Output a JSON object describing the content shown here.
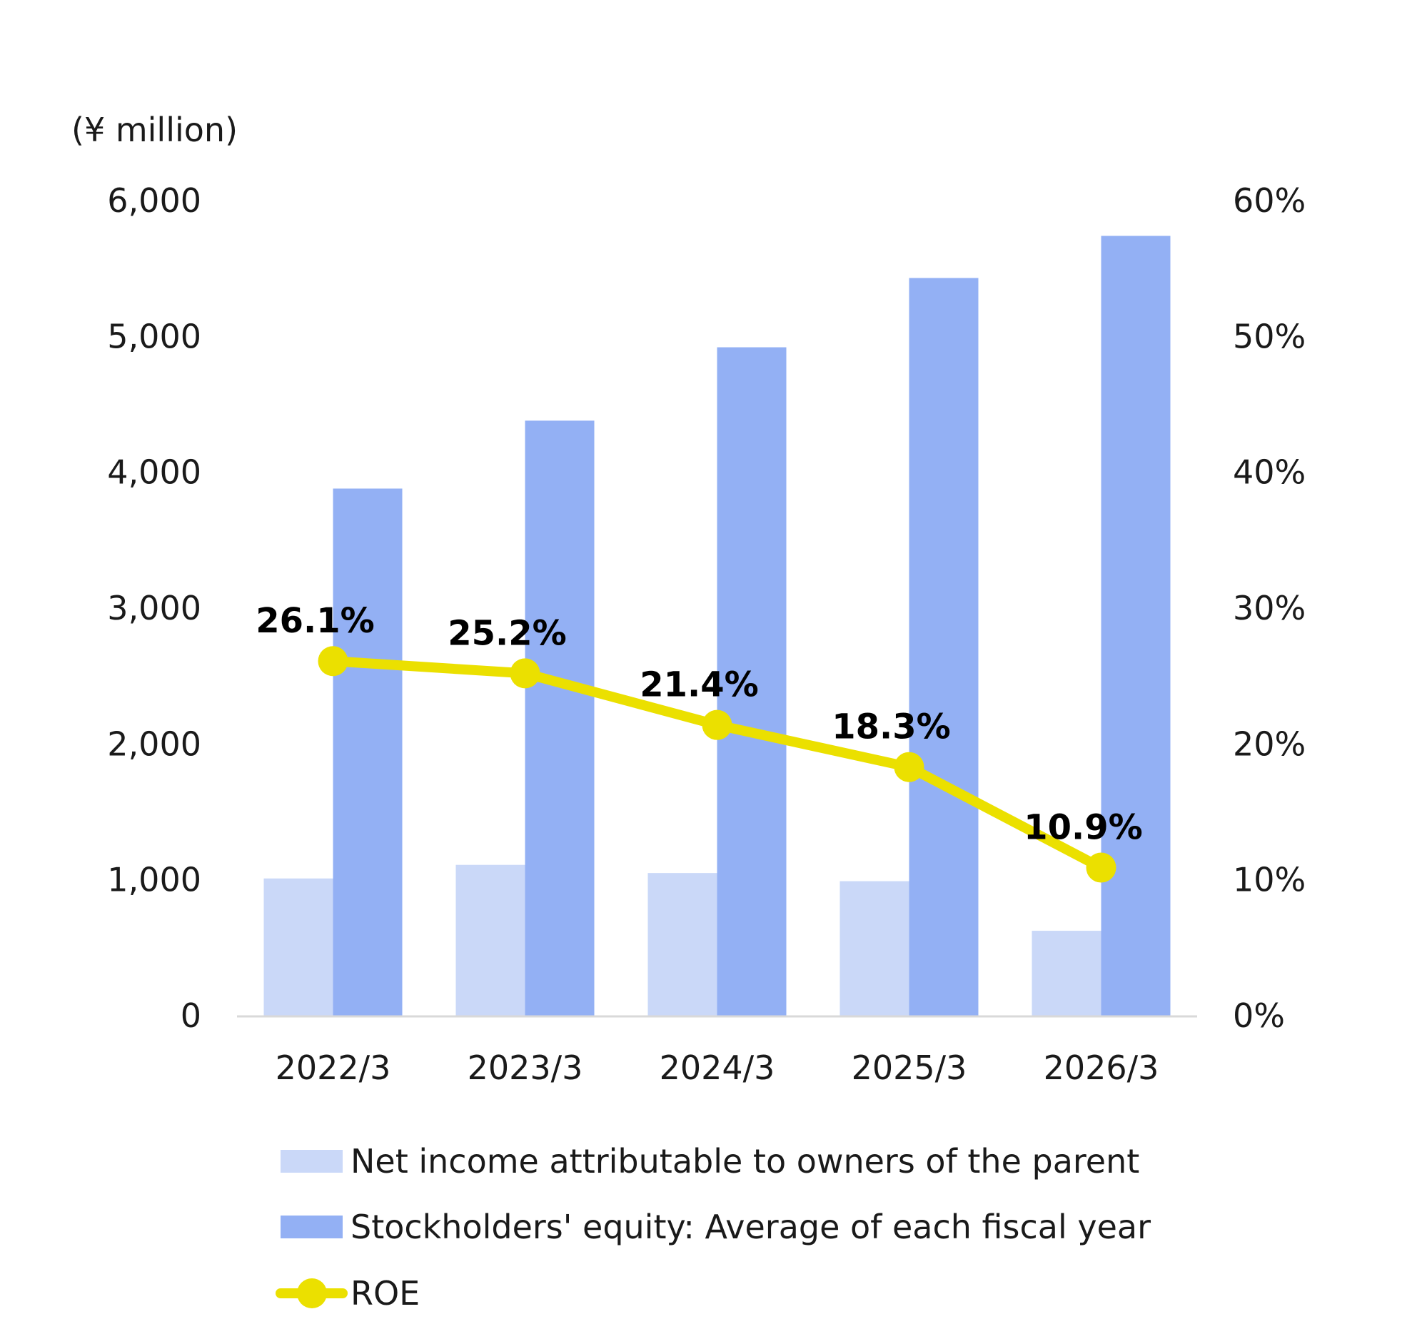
{
  "chart_data": {
    "type": "bar",
    "unit_label": "(¥ million)",
    "categories": [
      "2022/3",
      "2023/3",
      "2024/3",
      "2025/3",
      "2026/3"
    ],
    "y_left": {
      "ylim": [
        0,
        6000
      ],
      "ticks": [
        "0",
        "1,000",
        "2,000",
        "3,000",
        "4,000",
        "5,000",
        "6,000"
      ],
      "tick_values": [
        0,
        1000,
        2000,
        3000,
        4000,
        5000,
        6000
      ]
    },
    "y_right": {
      "ylim": [
        0,
        60
      ],
      "ticks": [
        "0%",
        "10%",
        "20%",
        "30%",
        "40%",
        "50%",
        "60%"
      ],
      "tick_values": [
        0,
        10,
        20,
        30,
        40,
        50,
        60
      ]
    },
    "series": [
      {
        "name": "Net income attributable to owners of the parent",
        "type": "bar",
        "axis": "left",
        "color": "#cad8f8",
        "values": [
          1010,
          1110,
          1050,
          990,
          625
        ]
      },
      {
        "name": "Stockholders' equity: Average of each fiscal year",
        "type": "bar",
        "axis": "left",
        "color": "#93b0f4",
        "values": [
          3880,
          4380,
          4920,
          5430,
          5740
        ]
      },
      {
        "name": "ROE",
        "type": "line",
        "axis": "right",
        "color": "#ebe000",
        "values": [
          26.1,
          25.2,
          21.4,
          18.3,
          10.9
        ],
        "labels": [
          "26.1%",
          "25.2%",
          "21.4%",
          "18.3%",
          "10.9%"
        ]
      }
    ],
    "legend_position": "bottom",
    "grid": false
  }
}
